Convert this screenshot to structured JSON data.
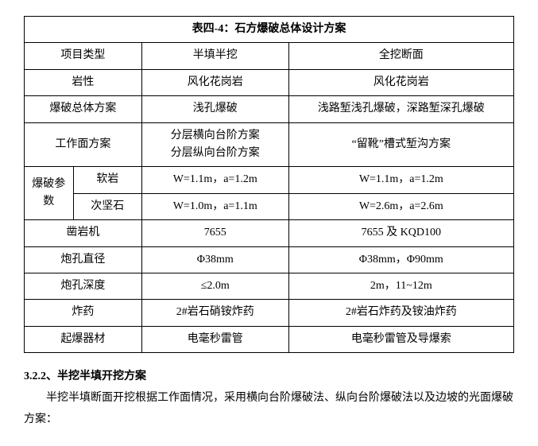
{
  "table": {
    "caption": "表四-4：石方爆破总体设计方案",
    "rows": [
      {
        "label": "项目类型",
        "col1": "半填半挖",
        "col2": "全挖断面"
      },
      {
        "label": "岩性",
        "col1": "风化花岗岩",
        "col2": "风化花岗岩"
      },
      {
        "label": "爆破总体方案",
        "col1": "浅孔爆破",
        "col2": "浅路堑浅孔爆破，深路堑深孔爆破"
      },
      {
        "label": "工作面方案",
        "col1_line1": "分层横向台阶方案",
        "col1_line2": "分层纵向台阶方案",
        "col2": "“留靴”槽式堑沟方案"
      },
      {
        "group_label": "爆破参数",
        "sub1_label": "软岩",
        "sub1_col1": "W=1.1m，a=1.2m",
        "sub1_col2": "W=1.1m，a=1.2m",
        "sub2_label": "次坚石",
        "sub2_col1": "W=1.0m，a=1.1m",
        "sub2_col2": "W=2.6m，a=2.6m"
      },
      {
        "label": "凿岩机",
        "col1": "7655",
        "col2": "7655 及 KQD100"
      },
      {
        "label": "炮孔直径",
        "col1": "Φ38mm",
        "col2": "Φ38mm，Φ90mm"
      },
      {
        "label": "炮孔深度",
        "col1": "≤2.0m",
        "col2": "2m，11~12m"
      },
      {
        "label": "炸药",
        "col1": "2#岩石硝铵炸药",
        "col2": "2#岩石炸药及铵油炸药"
      },
      {
        "label": "起爆器材",
        "col1": "电毫秒雷管",
        "col2": "电毫秒雷管及导爆索"
      }
    ]
  },
  "section": {
    "heading": "3.2.2、半挖半填开挖方案",
    "paragraph": "半挖半填断面开挖根据工作面情况，采用横向台阶爆破法、纵向台阶爆破法以及边坡的光面爆破方案："
  }
}
